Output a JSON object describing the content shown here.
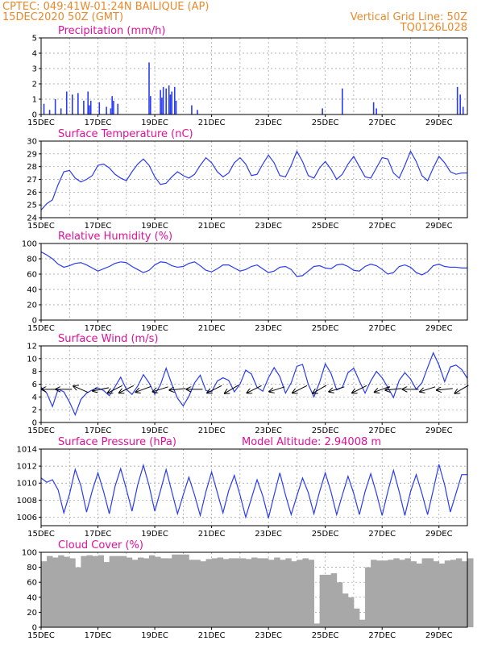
{
  "header": {
    "station": "CPTEC:   049:41W-01:24N   BAILIQUE (AP)",
    "run": "15DEC2020 50Z (GMT)",
    "grid_note": "Vertical Grid Line: 50Z",
    "model": "TQ0126L028"
  },
  "colors": {
    "series": "#2a3cf0",
    "cloud": "#a8a8a8",
    "title": "#e0109a",
    "header": "#e8892b",
    "arrow": "#000000"
  },
  "chart_data": [
    {
      "type": "bar",
      "title": "Precipitation (mm/h)",
      "ylim": [
        0,
        5
      ],
      "yticks": [
        0,
        1,
        2,
        3,
        4,
        5
      ],
      "xticks": [
        "15DEC",
        "17DEC",
        "19DEC",
        "21DEC",
        "23DEC",
        "25DEC",
        "27DEC",
        "29DEC"
      ],
      "x": [
        0.1,
        0.3,
        0.5,
        0.7,
        0.9,
        1.1,
        1.3,
        1.5,
        1.7,
        1.9,
        2.1,
        2.3,
        2.5,
        2.7,
        2.9,
        3.1,
        3.3,
        3.5,
        3.7,
        3.9,
        4.1,
        4.3,
        4.5,
        4.7,
        4.9,
        5.1,
        5.3,
        5.5,
        5.7,
        5.9,
        6.1,
        6.3,
        6.5,
        6.7,
        6.9,
        7.1,
        7.3,
        7.5,
        7.7,
        7.9,
        8.1,
        8.3,
        8.5,
        8.7,
        8.9,
        9.1,
        9.3,
        9.5,
        9.7,
        9.9,
        10.1,
        10.3,
        10.5,
        10.7,
        10.9,
        11.1,
        11.3,
        11.5,
        11.7,
        11.9,
        12.1,
        12.3,
        12.5,
        12.7,
        12.9,
        13.1,
        13.3,
        13.5,
        13.7,
        13.9,
        14.1,
        14.3,
        14.5,
        14.7,
        14.9
      ],
      "values": [
        0.7,
        0.3,
        1.0,
        0.4,
        1.5,
        1.3,
        1.4,
        0.9,
        0.6,
        0.0,
        0.0,
        0.5,
        1.2,
        0.7,
        0.0,
        0.0,
        0.0,
        0.0,
        0.0,
        0.0,
        0.0,
        0.1,
        0.0,
        0.0,
        0.0,
        0.0,
        0.0,
        0.3,
        0.0,
        0.0,
        0.0,
        0.0,
        0.0,
        0.0,
        0.0,
        0.0,
        0.0,
        0.0,
        0.0,
        0.0,
        0.0,
        0.0,
        0.0,
        0.0,
        0.0,
        0.0,
        0.0,
        0.0,
        0.0,
        0.0,
        0.0,
        0.0,
        0.0,
        0.0,
        0.0,
        0.0,
        0.0,
        0.0,
        0.0,
        0.0,
        0.0,
        0.0,
        0.0,
        0.0,
        0.0,
        0.0,
        0.0,
        0.0,
        0.0,
        0.0,
        0.0,
        0.0,
        0.0,
        0.0,
        0.0
      ],
      "peaks": [
        {
          "x": 3.8,
          "v": 3.4
        },
        {
          "x": 3.85,
          "v": 1.2
        },
        {
          "x": 4.2,
          "v": 1.6
        },
        {
          "x": 4.3,
          "v": 1.8
        },
        {
          "x": 4.4,
          "v": 1.7
        },
        {
          "x": 4.5,
          "v": 1.9
        },
        {
          "x": 4.6,
          "v": 1.5
        },
        {
          "x": 4.7,
          "v": 1.8
        },
        {
          "x": 4.25,
          "v": 1.1
        },
        {
          "x": 4.55,
          "v": 1.3
        },
        {
          "x": 4.75,
          "v": 0.9
        },
        {
          "x": 1.65,
          "v": 1.5
        },
        {
          "x": 2.05,
          "v": 0.8
        },
        {
          "x": 1.75,
          "v": 0.9
        },
        {
          "x": 2.45,
          "v": 0.4
        },
        {
          "x": 2.55,
          "v": 0.9
        },
        {
          "x": 5.3,
          "v": 0.6
        },
        {
          "x": 9.9,
          "v": 0.4
        },
        {
          "x": 10.6,
          "v": 1.7
        },
        {
          "x": 11.7,
          "v": 0.8
        },
        {
          "x": 11.8,
          "v": 0.4
        },
        {
          "x": 14.65,
          "v": 1.8
        },
        {
          "x": 14.75,
          "v": 1.3
        },
        {
          "x": 14.85,
          "v": 0.5
        }
      ]
    },
    {
      "type": "line",
      "title": "Surface Temperature (nC)",
      "ylim": [
        24,
        30
      ],
      "yticks": [
        24,
        25,
        26,
        27,
        28,
        29,
        30
      ],
      "xticks": [
        "15DEC",
        "17DEC",
        "19DEC",
        "21DEC",
        "23DEC",
        "25DEC",
        "27DEC",
        "29DEC"
      ],
      "x": [
        0.0,
        0.2,
        0.4,
        0.6,
        0.8,
        1.0,
        1.2,
        1.4,
        1.6,
        1.8,
        2.0,
        2.2,
        2.4,
        2.6,
        2.8,
        3.0,
        3.2,
        3.4,
        3.6,
        3.8,
        4.0,
        4.2,
        4.4,
        4.6,
        4.8,
        5.0,
        5.2,
        5.4,
        5.6,
        5.8,
        6.0,
        6.2,
        6.4,
        6.6,
        6.8,
        7.0,
        7.2,
        7.4,
        7.6,
        7.8,
        8.0,
        8.2,
        8.4,
        8.6,
        8.8,
        9.0,
        9.2,
        9.4,
        9.6,
        9.8,
        10.0,
        10.2,
        10.4,
        10.6,
        10.8,
        11.0,
        11.2,
        11.4,
        11.6,
        11.8,
        12.0,
        12.2,
        12.4,
        12.6,
        12.8,
        13.0,
        13.2,
        13.4,
        13.6,
        13.8,
        14.0,
        14.2,
        14.4,
        14.6,
        14.8,
        15.0
      ],
      "values": [
        24.6,
        25.1,
        25.4,
        26.6,
        27.6,
        27.7,
        27.1,
        26.8,
        27.0,
        27.3,
        28.1,
        28.2,
        27.9,
        27.4,
        27.1,
        26.9,
        27.6,
        28.2,
        28.6,
        28.1,
        27.2,
        26.6,
        26.7,
        27.2,
        27.6,
        27.3,
        27.1,
        27.4,
        28.1,
        28.7,
        28.3,
        27.6,
        27.2,
        27.5,
        28.3,
        28.7,
        28.2,
        27.3,
        27.4,
        28.2,
        28.9,
        28.3,
        27.3,
        27.2,
        28.1,
        29.2,
        28.4,
        27.3,
        27.1,
        27.9,
        28.4,
        27.8,
        27.0,
        27.4,
        28.2,
        28.8,
        28.0,
        27.2,
        27.1,
        27.9,
        28.7,
        28.6,
        27.5,
        27.1,
        28.1,
        29.2,
        28.4,
        27.3,
        26.9,
        27.9,
        28.8,
        28.3,
        27.6,
        27.4,
        27.5,
        27.5
      ]
    },
    {
      "type": "line",
      "title": "Relative Humidity (%)",
      "ylim": [
        0,
        100
      ],
      "yticks": [
        0,
        20,
        40,
        60,
        80,
        100
      ],
      "xticks": [
        "15DEC",
        "17DEC",
        "19DEC",
        "21DEC",
        "23DEC",
        "25DEC",
        "27DEC",
        "29DEC"
      ],
      "x": [
        0.0,
        0.2,
        0.4,
        0.6,
        0.8,
        1.0,
        1.2,
        1.4,
        1.6,
        1.8,
        2.0,
        2.2,
        2.4,
        2.6,
        2.8,
        3.0,
        3.2,
        3.4,
        3.6,
        3.8,
        4.0,
        4.2,
        4.4,
        4.6,
        4.8,
        5.0,
        5.2,
        5.4,
        5.6,
        5.8,
        6.0,
        6.2,
        6.4,
        6.6,
        6.8,
        7.0,
        7.2,
        7.4,
        7.6,
        7.8,
        8.0,
        8.2,
        8.4,
        8.6,
        8.8,
        9.0,
        9.2,
        9.4,
        9.6,
        9.8,
        10.0,
        10.2,
        10.4,
        10.6,
        10.8,
        11.0,
        11.2,
        11.4,
        11.6,
        11.8,
        12.0,
        12.2,
        12.4,
        12.6,
        12.8,
        13.0,
        13.2,
        13.4,
        13.6,
        13.8,
        14.0,
        14.2,
        14.4,
        14.6,
        14.8,
        15.0
      ],
      "values": [
        89,
        85,
        80,
        73,
        69,
        71,
        74,
        75,
        72,
        68,
        64,
        67,
        70,
        74,
        76,
        75,
        70,
        66,
        62,
        65,
        72,
        76,
        75,
        71,
        69,
        70,
        74,
        76,
        71,
        65,
        63,
        67,
        72,
        72,
        68,
        64,
        66,
        70,
        72,
        67,
        62,
        64,
        69,
        70,
        66,
        57,
        58,
        64,
        70,
        71,
        68,
        67,
        72,
        73,
        70,
        65,
        64,
        70,
        73,
        71,
        66,
        60,
        62,
        70,
        72,
        69,
        62,
        59,
        63,
        71,
        73,
        70,
        69,
        69,
        68,
        68
      ]
    },
    {
      "type": "line",
      "title": "Surface Wind (m/s)",
      "ylim": [
        0,
        12
      ],
      "yticks": [
        0,
        2,
        4,
        6,
        8,
        10,
        12
      ],
      "xticks": [
        "15DEC",
        "17DEC",
        "19DEC",
        "21DEC",
        "23DEC",
        "25DEC",
        "27DEC",
        "29DEC"
      ],
      "x": [
        0.0,
        0.2,
        0.4,
        0.6,
        0.8,
        1.0,
        1.2,
        1.4,
        1.6,
        1.8,
        2.0,
        2.2,
        2.4,
        2.6,
        2.8,
        3.0,
        3.2,
        3.4,
        3.6,
        3.8,
        4.0,
        4.2,
        4.4,
        4.6,
        4.8,
        5.0,
        5.2,
        5.4,
        5.6,
        5.8,
        6.0,
        6.2,
        6.4,
        6.6,
        6.8,
        7.0,
        7.2,
        7.4,
        7.6,
        7.8,
        8.0,
        8.2,
        8.4,
        8.6,
        8.8,
        9.0,
        9.2,
        9.4,
        9.6,
        9.8,
        10.0,
        10.2,
        10.4,
        10.6,
        10.8,
        11.0,
        11.2,
        11.4,
        11.6,
        11.8,
        12.0,
        12.2,
        12.4,
        12.6,
        12.8,
        13.0,
        13.2,
        13.4,
        13.6,
        13.8,
        14.0,
        14.2,
        14.4,
        14.6,
        14.8,
        15.0
      ],
      "values": [
        5.5,
        4.6,
        2.5,
        5.2,
        4.8,
        3.2,
        1.2,
        3.6,
        4.6,
        5.1,
        5.4,
        5.0,
        4.2,
        5.6,
        7.1,
        5.2,
        4.4,
        5.7,
        7.5,
        6.2,
        4.4,
        5.9,
        8.5,
        6.0,
        3.8,
        2.6,
        4.1,
        6.2,
        7.4,
        5.0,
        4.8,
        6.5,
        7.0,
        6.6,
        4.8,
        6.0,
        8.2,
        7.6,
        5.5,
        4.9,
        7.0,
        8.6,
        7.2,
        4.6,
        6.2,
        8.8,
        9.1,
        6.0,
        4.0,
        6.3,
        9.2,
        7.7,
        5.1,
        5.5,
        7.8,
        8.5,
        6.5,
        4.6,
        6.5,
        8.0,
        7.0,
        5.5,
        3.9,
        6.6,
        7.8,
        6.8,
        5.2,
        6.2,
        8.6,
        10.9,
        9.0,
        6.4,
        8.7,
        9.0,
        8.3,
        6.9
      ],
      "wind_vectors": [
        {
          "x": 0.3,
          "u": -1,
          "v": 0
        },
        {
          "x": 0.8,
          "u": -1,
          "v": 0
        },
        {
          "x": 1.4,
          "u": -0.92,
          "v": 0.4
        },
        {
          "x": 2.1,
          "u": -1,
          "v": -0.2
        },
        {
          "x": 2.6,
          "u": -0.9,
          "v": -0.45
        },
        {
          "x": 3.0,
          "u": -0.9,
          "v": -0.45
        },
        {
          "x": 3.6,
          "u": -0.95,
          "v": -0.35
        },
        {
          "x": 4.2,
          "u": -0.95,
          "v": -0.3
        },
        {
          "x": 4.8,
          "u": -1,
          "v": -0.1
        },
        {
          "x": 5.4,
          "u": -1,
          "v": 0
        },
        {
          "x": 6.1,
          "u": -0.9,
          "v": -0.45
        },
        {
          "x": 6.7,
          "u": -0.85,
          "v": -0.5
        },
        {
          "x": 7.5,
          "u": -0.9,
          "v": -0.45
        },
        {
          "x": 8.3,
          "u": -0.95,
          "v": -0.3
        },
        {
          "x": 9.1,
          "u": -0.9,
          "v": -0.45
        },
        {
          "x": 9.8,
          "u": -0.85,
          "v": -0.5
        },
        {
          "x": 10.4,
          "u": -0.95,
          "v": -0.3
        },
        {
          "x": 11.2,
          "u": -0.9,
          "v": -0.45
        },
        {
          "x": 12.0,
          "u": -0.95,
          "v": -0.35
        },
        {
          "x": 12.4,
          "u": -1,
          "v": -0.1
        },
        {
          "x": 13.0,
          "u": -1,
          "v": 0
        },
        {
          "x": 13.6,
          "u": -0.95,
          "v": -0.3
        },
        {
          "x": 14.2,
          "u": -1,
          "v": -0.1
        },
        {
          "x": 14.8,
          "u": -0.85,
          "v": -0.5
        }
      ]
    },
    {
      "type": "line",
      "title": "Surface Pressure (hPa)",
      "annotation": "Model Altitude: 2.94008 m",
      "ylim": [
        1005,
        1014
      ],
      "yticks": [
        1006,
        1008,
        1010,
        1012,
        1014
      ],
      "xticks": [
        "15DEC",
        "17DEC",
        "19DEC",
        "21DEC",
        "23DEC",
        "25DEC",
        "27DEC",
        "29DEC"
      ],
      "x": [
        0.0,
        0.2,
        0.4,
        0.6,
        0.8,
        1.0,
        1.2,
        1.4,
        1.6,
        1.8,
        2.0,
        2.2,
        2.4,
        2.6,
        2.8,
        3.0,
        3.2,
        3.4,
        3.6,
        3.8,
        4.0,
        4.2,
        4.4,
        4.6,
        4.8,
        5.0,
        5.2,
        5.4,
        5.6,
        5.8,
        6.0,
        6.2,
        6.4,
        6.6,
        6.8,
        7.0,
        7.2,
        7.4,
        7.6,
        7.8,
        8.0,
        8.2,
        8.4,
        8.6,
        8.8,
        9.0,
        9.2,
        9.4,
        9.6,
        9.8,
        10.0,
        10.2,
        10.4,
        10.6,
        10.8,
        11.0,
        11.2,
        11.4,
        11.6,
        11.8,
        12.0,
        12.2,
        12.4,
        12.6,
        12.8,
        13.0,
        13.2,
        13.4,
        13.6,
        13.8,
        14.0,
        14.2,
        14.4,
        14.6,
        14.8,
        15.0
      ],
      "values": [
        1010.6,
        1010.1,
        1010.4,
        1009.2,
        1006.5,
        1008.7,
        1011.6,
        1009.7,
        1006.6,
        1009.1,
        1011.2,
        1009.0,
        1006.4,
        1009.6,
        1011.7,
        1009.3,
        1006.7,
        1009.8,
        1012.1,
        1009.7,
        1006.7,
        1009.1,
        1011.6,
        1009.0,
        1006.4,
        1008.6,
        1010.7,
        1008.6,
        1006.2,
        1009.0,
        1011.3,
        1008.9,
        1006.5,
        1009.1,
        1010.9,
        1008.6,
        1006.0,
        1008.2,
        1010.4,
        1008.5,
        1005.9,
        1008.6,
        1011.2,
        1008.6,
        1006.3,
        1008.5,
        1010.6,
        1008.9,
        1006.4,
        1009.0,
        1011.2,
        1009.0,
        1006.3,
        1008.6,
        1010.8,
        1008.8,
        1006.3,
        1009.0,
        1011.1,
        1008.8,
        1006.2,
        1009.0,
        1011.5,
        1009.0,
        1006.2,
        1009.0,
        1011.0,
        1008.8,
        1006.3,
        1009.2,
        1012.2,
        1009.8,
        1006.6,
        1008.8,
        1011.0,
        1011.0
      ]
    },
    {
      "type": "area",
      "title": "Cloud Cover (%)",
      "ylim": [
        0,
        100
      ],
      "yticks": [
        0,
        20,
        40,
        60,
        80,
        100
      ],
      "xticks": [
        "15DEC",
        "17DEC",
        "19DEC",
        "21DEC",
        "23DEC",
        "25DEC",
        "27DEC",
        "29DEC"
      ],
      "x": [
        0.0,
        0.2,
        0.4,
        0.6,
        0.8,
        1.0,
        1.2,
        1.4,
        1.6,
        1.8,
        2.0,
        2.2,
        2.4,
        2.6,
        2.8,
        3.0,
        3.2,
        3.4,
        3.6,
        3.8,
        4.0,
        4.2,
        4.4,
        4.6,
        4.8,
        5.0,
        5.2,
        5.4,
        5.6,
        5.8,
        6.0,
        6.2,
        6.4,
        6.6,
        6.8,
        7.0,
        7.2,
        7.4,
        7.6,
        7.8,
        8.0,
        8.2,
        8.4,
        8.6,
        8.8,
        9.0,
        9.2,
        9.4,
        9.6,
        9.8,
        10.0,
        10.2,
        10.4,
        10.6,
        10.8,
        11.0,
        11.2,
        11.4,
        11.6,
        11.8,
        12.0,
        12.2,
        12.4,
        12.6,
        12.8,
        13.0,
        13.2,
        13.4,
        13.6,
        13.8,
        14.0,
        14.2,
        14.4,
        14.6,
        14.8,
        15.0
      ],
      "values": [
        88,
        95,
        93,
        96,
        94,
        92,
        80,
        95,
        96,
        95,
        96,
        87,
        95,
        95,
        95,
        93,
        90,
        93,
        92,
        96,
        94,
        92,
        92,
        97,
        97,
        97,
        90,
        90,
        88,
        91,
        92,
        93,
        91,
        92,
        92,
        92,
        91,
        93,
        92,
        92,
        90,
        93,
        90,
        92,
        88,
        90,
        92,
        90,
        5,
        70,
        70,
        72,
        60,
        45,
        40,
        25,
        10,
        80,
        90,
        89,
        89,
        90,
        92,
        90,
        92,
        88,
        85,
        92,
        92,
        88,
        85,
        89,
        90,
        92,
        88,
        92
      ]
    }
  ]
}
